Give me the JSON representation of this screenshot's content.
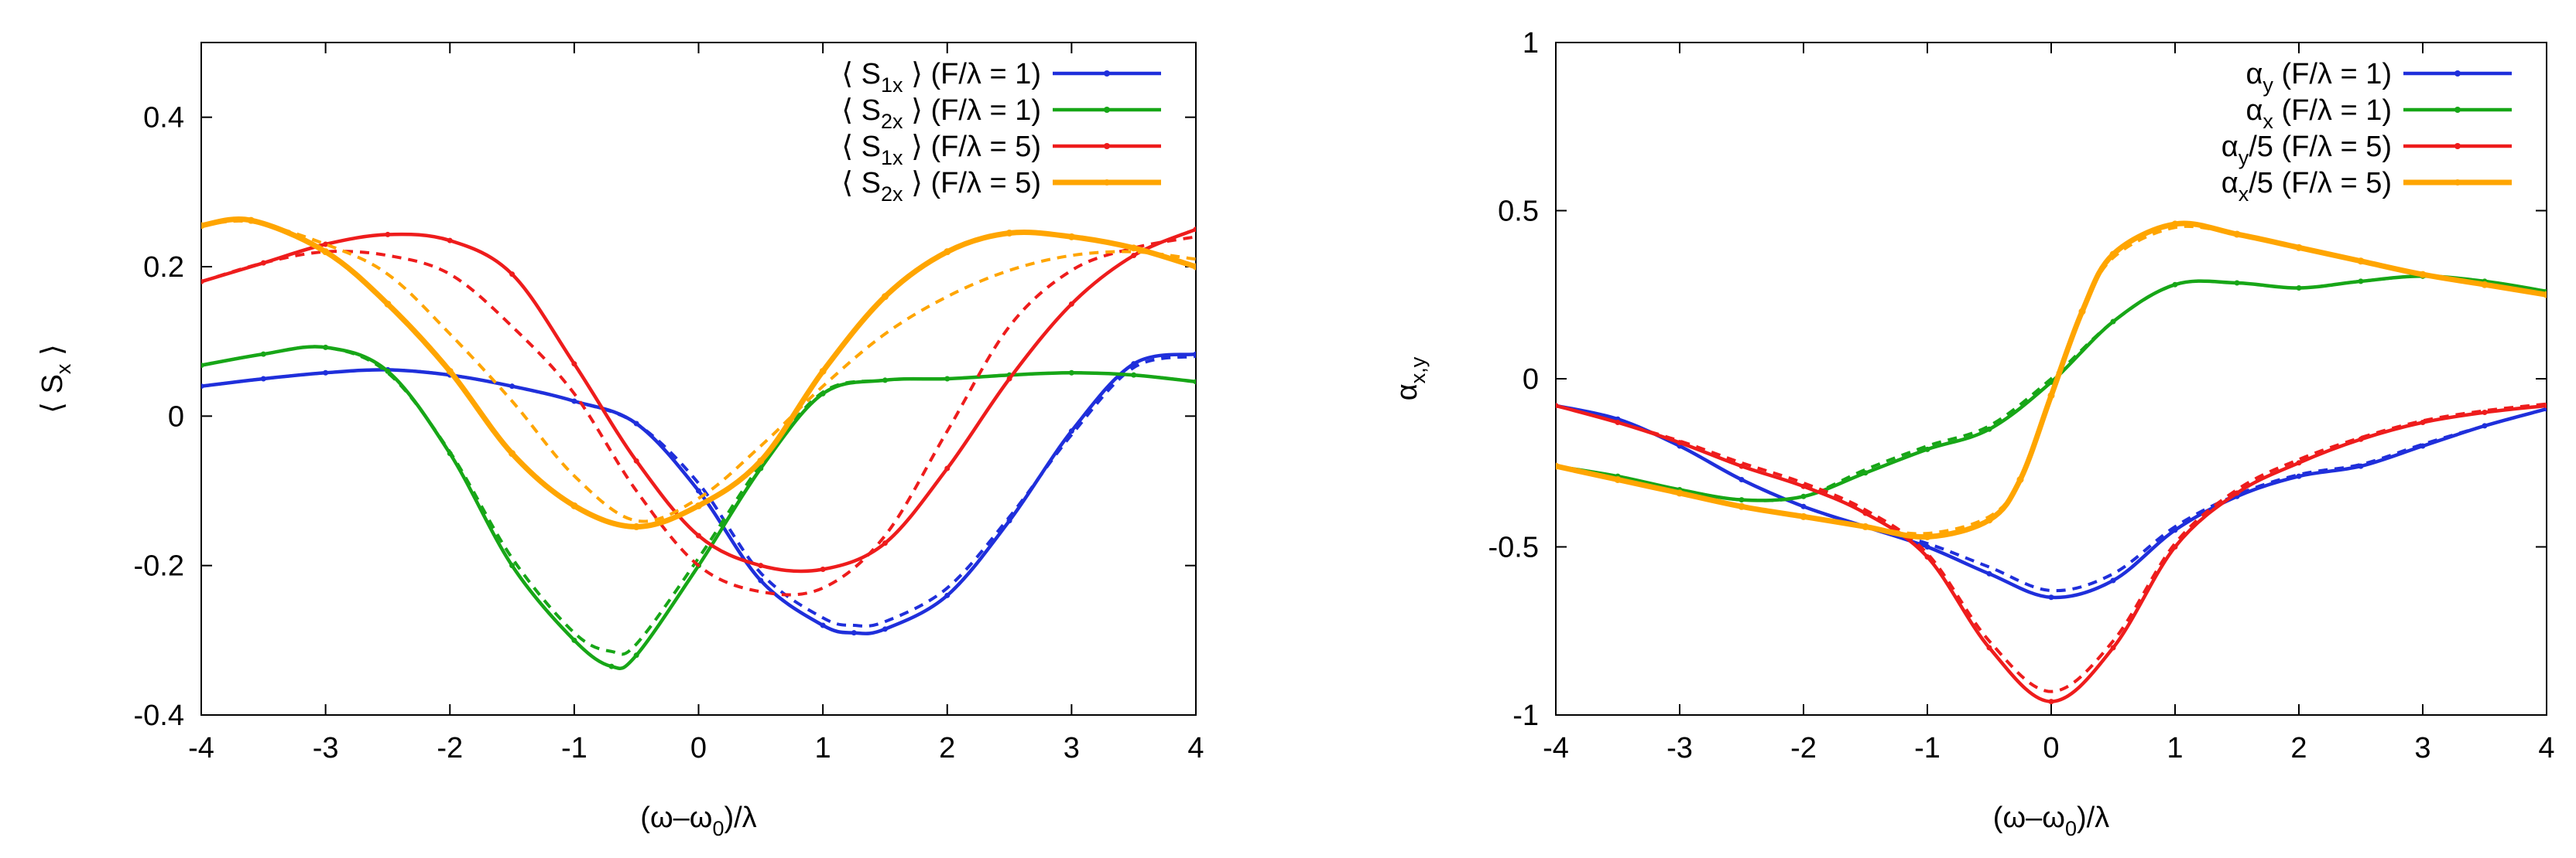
{
  "chart_data": [
    {
      "type": "line",
      "xlabel": "(ω–ω",
      "xlabel_sub": "0",
      "xlabel_tail": ")/λ",
      "ylabel": "⟨ S",
      "ylabel_sub": "x",
      "ylabel_tail": " ⟩",
      "xlim": [
        -4,
        4
      ],
      "ylim": [
        -0.4,
        0.5
      ],
      "xticks": [
        -4,
        -3,
        -2,
        -1,
        0,
        1,
        2,
        3,
        4
      ],
      "xtick_labels": [
        "-4",
        "-3",
        "-2",
        "-1",
        "0",
        "1",
        "2",
        "3",
        "4"
      ],
      "yticks": [
        -0.4,
        -0.2,
        0,
        0.2,
        0.4
      ],
      "ytick_labels": [
        "-0.4",
        "-0.2",
        "0",
        "0.2",
        "0.4"
      ],
      "legend_position": "top-right",
      "series": [
        {
          "name": "⟨ S1x ⟩ (F/λ = 1)",
          "label_pre": "⟨ S",
          "label_sub": "1x",
          "label_post": " ⟩ (F/λ = 1)",
          "color": "#1f2fdb",
          "x": [
            -4,
            -3.5,
            -3,
            -2.5,
            -2,
            -1.5,
            -1,
            -0.5,
            0,
            0.5,
            1,
            1.25,
            1.5,
            2,
            2.5,
            3,
            3.5,
            4
          ],
          "y": [
            0.04,
            0.05,
            0.058,
            0.062,
            0.055,
            0.04,
            0.02,
            -0.01,
            -0.1,
            -0.22,
            -0.28,
            -0.29,
            -0.285,
            -0.24,
            -0.14,
            -0.02,
            0.07,
            0.083
          ],
          "dashed_y": [
            0.04,
            0.05,
            0.058,
            0.062,
            0.055,
            0.04,
            0.02,
            -0.01,
            -0.09,
            -0.21,
            -0.27,
            -0.28,
            -0.275,
            -0.23,
            -0.135,
            -0.025,
            0.065,
            0.08
          ]
        },
        {
          "name": "⟨ S2x ⟩ (F/λ = 1)",
          "label_pre": "⟨ S",
          "label_sub": "2x",
          "label_post": " ⟩ (F/λ = 1)",
          "color": "#17a617",
          "x": [
            -4,
            -3.5,
            -3,
            -2.5,
            -2,
            -1.5,
            -1,
            -0.7,
            -0.5,
            0,
            0.5,
            1,
            1.5,
            2,
            2.5,
            3,
            3.5,
            4
          ],
          "y": [
            0.068,
            0.083,
            0.092,
            0.06,
            -0.05,
            -0.2,
            -0.3,
            -0.335,
            -0.32,
            -0.2,
            -0.07,
            0.03,
            0.048,
            0.05,
            0.055,
            0.058,
            0.055,
            0.046
          ],
          "dashed_y": [
            0.068,
            0.083,
            0.092,
            0.058,
            -0.048,
            -0.19,
            -0.29,
            -0.315,
            -0.305,
            -0.19,
            -0.065,
            0.032,
            0.048,
            0.05,
            0.055,
            0.058,
            0.055,
            0.046
          ]
        },
        {
          "name": "⟨ S1x ⟩ (F/λ = 5)",
          "label_pre": "⟨ S",
          "label_sub": "1x",
          "label_post": " ⟩ (F/λ = 5)",
          "color": "#ee1c1c",
          "x": [
            -4,
            -3.5,
            -3,
            -2.5,
            -2,
            -1.5,
            -1,
            -0.5,
            0,
            0.5,
            1,
            1.5,
            2,
            2.5,
            3,
            3.5,
            4
          ],
          "y": [
            0.18,
            0.205,
            0.23,
            0.243,
            0.235,
            0.19,
            0.07,
            -0.06,
            -0.16,
            -0.2,
            -0.205,
            -0.17,
            -0.07,
            0.05,
            0.15,
            0.215,
            0.25
          ],
          "dashed_y": [
            0.18,
            0.205,
            0.22,
            0.215,
            0.19,
            0.12,
            0.03,
            -0.1,
            -0.2,
            -0.235,
            -0.23,
            -0.16,
            -0.02,
            0.12,
            0.195,
            0.225,
            0.24
          ]
        },
        {
          "name": "⟨ S2x ⟩ (F/λ = 5)",
          "label_pre": "⟨ S",
          "label_sub": "2x",
          "label_post": " ⟩ (F/λ = 5)",
          "color": "#ffa500",
          "x": [
            -4,
            -3.6,
            -3,
            -2.5,
            -2,
            -1.5,
            -1,
            -0.5,
            0,
            0.5,
            1,
            1.5,
            2,
            2.5,
            3,
            3.5,
            4
          ],
          "y": [
            0.255,
            0.262,
            0.22,
            0.15,
            0.06,
            -0.05,
            -0.12,
            -0.148,
            -0.12,
            -0.06,
            0.06,
            0.16,
            0.22,
            0.245,
            0.24,
            0.225,
            0.2
          ],
          "dashed_y": [
            0.255,
            0.26,
            0.23,
            0.19,
            0.11,
            0.02,
            -0.08,
            -0.14,
            -0.11,
            -0.04,
            0.04,
            0.11,
            0.16,
            0.195,
            0.215,
            0.22,
            0.21
          ]
        }
      ]
    },
    {
      "type": "line",
      "xlabel": "(ω–ω",
      "xlabel_sub": "0",
      "xlabel_tail": ")/λ",
      "ylabel": "α",
      "ylabel_sub": "x,y",
      "ylabel_tail": "",
      "xlim": [
        -4,
        4
      ],
      "ylim": [
        -1,
        1
      ],
      "xticks": [
        -4,
        -3,
        -2,
        -1,
        0,
        1,
        2,
        3,
        4
      ],
      "xtick_labels": [
        "-4",
        "-3",
        "-2",
        "-1",
        "0",
        "1",
        "2",
        "3",
        "4"
      ],
      "yticks": [
        -1,
        -0.5,
        0,
        0.5,
        1
      ],
      "ytick_labels": [
        "-1",
        "-0.5",
        "0",
        "0.5",
        "1"
      ],
      "legend_position": "top-right",
      "series": [
        {
          "name": "αy (F/λ = 1)",
          "label_pre": "α",
          "label_sub": "y",
          "label_post": " (F/λ = 1)",
          "color": "#1f2fdb",
          "x": [
            -4,
            -3.5,
            -3,
            -2.5,
            -2,
            -1.5,
            -1,
            -0.5,
            0,
            0.5,
            1,
            1.5,
            2,
            2.5,
            3,
            3.5,
            4
          ],
          "y": [
            -0.08,
            -0.12,
            -0.2,
            -0.3,
            -0.38,
            -0.44,
            -0.5,
            -0.58,
            -0.65,
            -0.6,
            -0.45,
            -0.35,
            -0.29,
            -0.26,
            -0.2,
            -0.14,
            -0.09
          ],
          "dashed_y": [
            -0.08,
            -0.12,
            -0.2,
            -0.3,
            -0.38,
            -0.44,
            -0.49,
            -0.56,
            -0.63,
            -0.58,
            -0.44,
            -0.345,
            -0.285,
            -0.255,
            -0.195,
            -0.14,
            -0.09
          ]
        },
        {
          "name": "αx (F/λ = 1)",
          "label_pre": "α",
          "label_sub": "x",
          "label_post": " (F/λ = 1)",
          "color": "#17a617",
          "x": [
            -4,
            -3.5,
            -3,
            -2.5,
            -2,
            -1.5,
            -1,
            -0.5,
            0,
            0.5,
            1,
            1.5,
            2,
            2.5,
            3,
            3.5,
            4
          ],
          "y": [
            -0.26,
            -0.29,
            -0.33,
            -0.36,
            -0.35,
            -0.28,
            -0.21,
            -0.15,
            -0.01,
            0.17,
            0.28,
            0.285,
            0.27,
            0.29,
            0.305,
            0.29,
            0.26
          ],
          "dashed_y": [
            -0.26,
            -0.29,
            -0.33,
            -0.36,
            -0.35,
            -0.27,
            -0.2,
            -0.14,
            0,
            0.17,
            0.28,
            0.285,
            0.27,
            0.29,
            0.305,
            0.29,
            0.26
          ]
        },
        {
          "name": "αy/5 (F/λ = 5)",
          "label_pre": "α",
          "label_sub": "y",
          "label_post": "/5 (F/λ = 5)",
          "color": "#ee1c1c",
          "x": [
            -4,
            -3.5,
            -3,
            -2.5,
            -2,
            -1.5,
            -1,
            -0.5,
            0,
            0.5,
            1,
            1.5,
            2,
            2.5,
            3,
            3.5,
            4
          ],
          "y": [
            -0.08,
            -0.13,
            -0.19,
            -0.26,
            -0.32,
            -0.4,
            -0.53,
            -0.8,
            -0.96,
            -0.8,
            -0.5,
            -0.34,
            -0.25,
            -0.18,
            -0.13,
            -0.1,
            -0.08
          ],
          "dashed_y": [
            -0.08,
            -0.13,
            -0.185,
            -0.25,
            -0.31,
            -0.39,
            -0.52,
            -0.78,
            -0.93,
            -0.78,
            -0.49,
            -0.33,
            -0.24,
            -0.175,
            -0.125,
            -0.095,
            -0.075
          ]
        },
        {
          "name": "αx/5 (F/λ = 5)",
          "label_pre": "α",
          "label_sub": "x",
          "label_post": "/5 (F/λ = 5)",
          "color": "#ffa500",
          "x": [
            -4,
            -3.5,
            -3,
            -2.5,
            -2,
            -1.5,
            -1,
            -0.5,
            -0.25,
            0,
            0.25,
            0.5,
            1,
            1.5,
            2,
            2.5,
            3,
            3.5,
            4
          ],
          "y": [
            -0.26,
            -0.3,
            -0.34,
            -0.38,
            -0.41,
            -0.44,
            -0.47,
            -0.42,
            -0.3,
            -0.05,
            0.2,
            0.37,
            0.46,
            0.43,
            0.39,
            0.35,
            0.31,
            0.28,
            0.25
          ],
          "dashed_y": [
            -0.26,
            -0.3,
            -0.34,
            -0.38,
            -0.41,
            -0.44,
            -0.46,
            -0.41,
            -0.3,
            -0.05,
            0.2,
            0.36,
            0.45,
            0.43,
            0.39,
            0.35,
            0.31,
            0.28,
            0.25
          ]
        }
      ]
    }
  ]
}
